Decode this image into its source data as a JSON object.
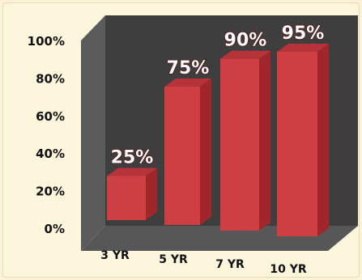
{
  "chart_data": {
    "type": "bar",
    "title": "",
    "xlabel": "",
    "ylabel": "",
    "categories": [
      "3 YR",
      "5 YR",
      "7 YR",
      "10 YR"
    ],
    "values": [
      25,
      75,
      90,
      95
    ],
    "data_labels": [
      "25%",
      "75%",
      "90%",
      "95%"
    ],
    "ylim": [
      0,
      100
    ],
    "yticks": [
      0,
      20,
      40,
      60,
      80,
      100
    ],
    "ytick_labels": [
      "0%",
      "20%",
      "40%",
      "60%",
      "80%",
      "100%"
    ],
    "grid": false,
    "style": "3d-column",
    "colors": {
      "bar_front": "#cd3f43",
      "bar_top": "#b6333a",
      "bar_side": "#a1262b",
      "wall_back": "#3e3e3e",
      "wall_side": "#5b5b5b",
      "floor": "#575757",
      "data_label": "#ffffff"
    }
  }
}
